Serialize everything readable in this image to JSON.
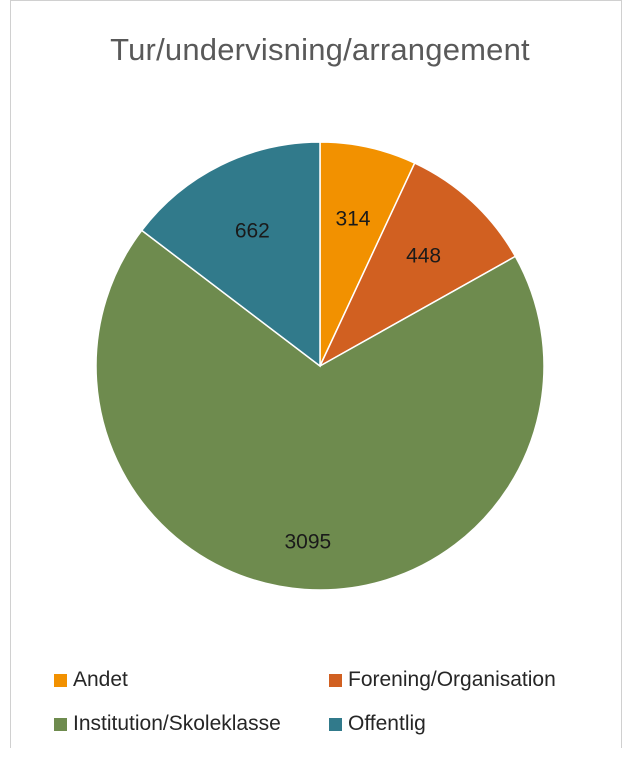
{
  "chart_data": {
    "type": "pie",
    "title": "Tur/undervisning/arrangement",
    "categories": [
      "Andet",
      "Forening/Organisation",
      "Institution/Skoleklasse",
      "Offentlig"
    ],
    "values": [
      314,
      448,
      3095,
      662
    ],
    "colors": [
      "#f29100",
      "#d16021",
      "#6e8b4e",
      "#317a8b"
    ],
    "data_labels": [
      "314",
      "448",
      "3095",
      "662"
    ],
    "legend_position": "bottom",
    "start_angle_deg": 0,
    "direction": "clockwise"
  }
}
